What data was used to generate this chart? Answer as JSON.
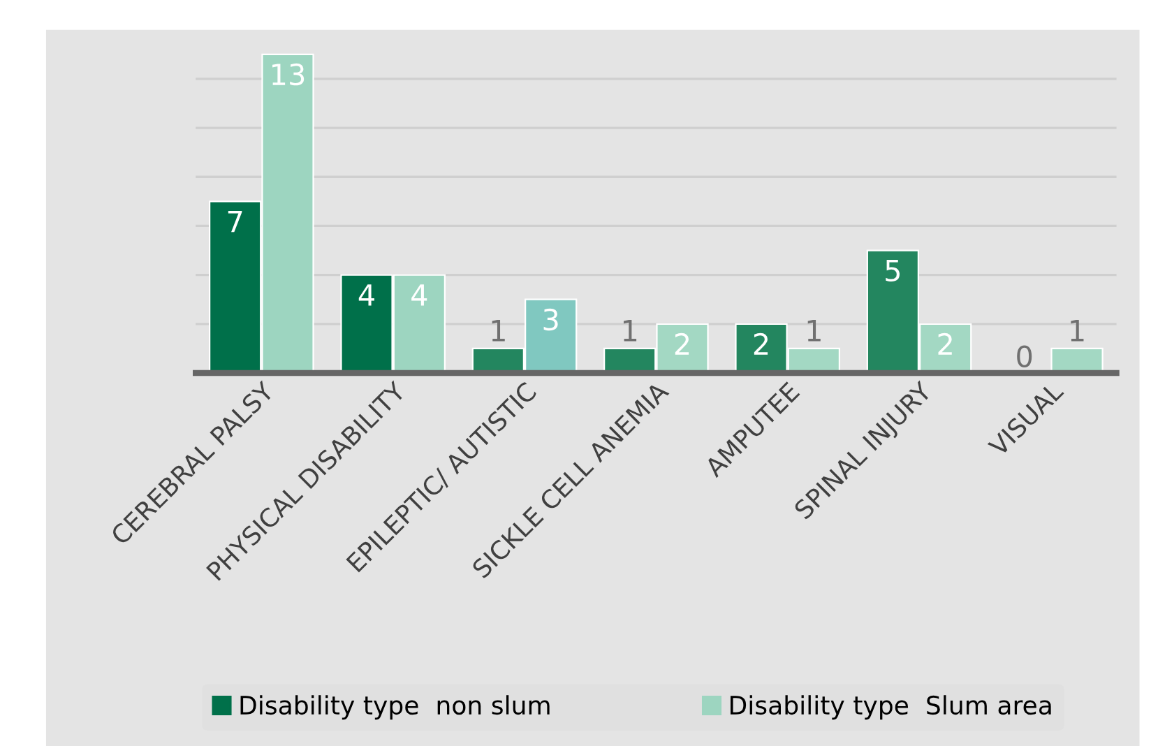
{
  "chart_data": {
    "type": "bar",
    "categories": [
      "CEREBRAL PALSY",
      "PHYSICAL DISABILITY",
      "EPILEPTIC/ AUTISTIC",
      "SICKLE CELL ANEMIA",
      "AMPUTEE",
      "SPINAL INJURY",
      "VISUAL"
    ],
    "series": [
      {
        "name": "Disability type  non slum",
        "color": "#00704a",
        "colors": [
          "#00704a",
          "#00704a",
          "#23865f",
          "#23865f",
          "#23865f",
          "#23865f",
          "#23865f"
        ],
        "values": [
          7,
          4,
          1,
          1,
          2,
          5,
          0
        ]
      },
      {
        "name": "Disability type  Slum area",
        "color": "#9dd5c0",
        "colors": [
          "#9dd5c0",
          "#9dd5c0",
          "#80c8c0",
          "#a3d8c3",
          "#a3d8c3",
          "#a3d8c3",
          "#a3d8c3"
        ],
        "values": [
          13,
          4,
          3,
          2,
          1,
          2,
          1
        ]
      }
    ],
    "ylim": [
      0,
      14
    ],
    "yticks": [
      {
        "value": 0,
        "label": null
      },
      {
        "value": 2,
        "label": null
      },
      {
        "value": 4,
        "label": null
      },
      {
        "value": 6,
        "label": null
      },
      {
        "value": 8,
        "label": null
      },
      {
        "value": 10,
        "label": null
      },
      {
        "value": 12,
        "label": null
      }
    ],
    "tick_labels": "x",
    "grid": "y",
    "data_labels": true,
    "legend": "bottom"
  }
}
